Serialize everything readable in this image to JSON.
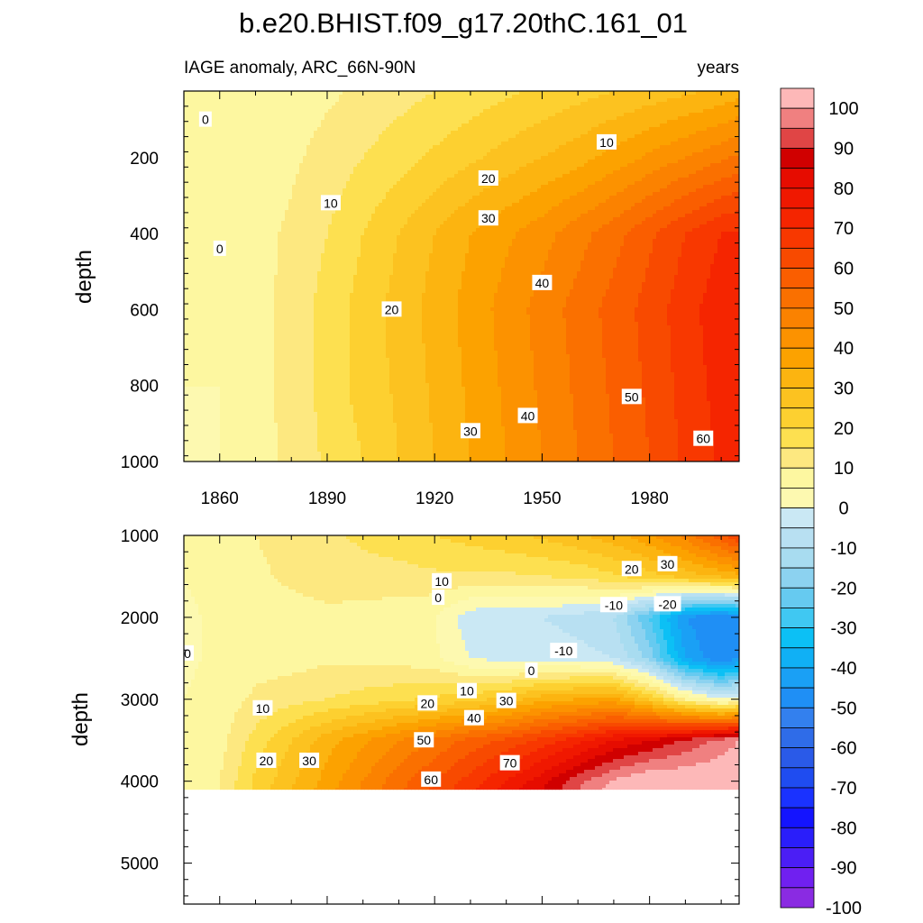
{
  "figure": {
    "title": "b.e20.BHIST.f09_g17.20thC.161_01",
    "subtitle_left": "IAGE anomaly, ARC_66N-90N",
    "subtitle_right": "years"
  },
  "colors": {
    "levels": [
      -100,
      -95,
      -90,
      -85,
      -80,
      -75,
      -70,
      -65,
      -60,
      -55,
      -50,
      -45,
      -40,
      -35,
      -30,
      -25,
      -20,
      -15,
      -10,
      -5,
      0,
      5,
      10,
      15,
      20,
      25,
      30,
      35,
      40,
      45,
      50,
      55,
      60,
      65,
      70,
      75,
      80,
      85,
      90,
      95,
      100
    ],
    "palette": [
      "#8a2be2",
      "#7020f0",
      "#4b1ef5",
      "#2a1efa",
      "#1414ff",
      "#1a32ff",
      "#1f4cf0",
      "#2a5ae8",
      "#2f6ce8",
      "#3380ee",
      "#1f8ff5",
      "#1aa0f5",
      "#10b0f5",
      "#0cc0f5",
      "#40c8f2",
      "#66caf0",
      "#8cd2f0",
      "#a8dcf0",
      "#b8e0f2",
      "#cae8f4",
      "#fdf9b0",
      "#fdf7a0",
      "#fde880",
      "#fde050",
      "#fdd030",
      "#fcc220",
      "#fcb410",
      "#fca200",
      "#fc9200",
      "#fb8200",
      "#fa7000",
      "#fa5e00",
      "#f84a00",
      "#f83800",
      "#f52500",
      "#f01800",
      "#e60c00",
      "#d00000",
      "#e04545",
      "#f08080",
      "#fdb8b8"
    ],
    "background": "#ffffff"
  },
  "chart_data": [
    {
      "type": "heatmap",
      "panel": "upper",
      "variable": "IAGE anomaly",
      "units": "years",
      "x": [
        1850,
        1860,
        1870,
        1880,
        1890,
        1900,
        1910,
        1920,
        1930,
        1940,
        1950,
        1960,
        1970,
        1980,
        1990,
        2000,
        2005
      ],
      "y": [
        25,
        200,
        400,
        600,
        800,
        1000
      ],
      "z": [
        [
          0,
          0,
          1,
          2,
          4,
          6,
          8,
          10,
          12,
          14,
          16,
          18,
          20,
          22,
          24,
          26,
          28
        ],
        [
          0,
          0,
          2,
          4,
          7,
          10,
          13,
          16,
          19,
          22,
          25,
          28,
          32,
          36,
          40,
          44,
          46
        ],
        [
          0,
          0,
          3,
          6,
          10,
          15,
          20,
          25,
          30,
          34,
          38,
          43,
          48,
          54,
          60,
          65,
          66
        ],
        [
          0,
          0,
          3,
          7,
          12,
          17,
          22,
          27,
          32,
          37,
          42,
          47,
          52,
          57,
          63,
          68,
          70
        ],
        [
          0,
          0,
          3,
          7,
          12,
          17,
          21,
          26,
          31,
          36,
          41,
          46,
          51,
          56,
          62,
          67,
          69
        ],
        [
          -1,
          0,
          3,
          6,
          11,
          15,
          20,
          25,
          30,
          35,
          40,
          45,
          50,
          55,
          61,
          66,
          68
        ]
      ],
      "contour_labels": [
        {
          "text": "0",
          "x": 1856,
          "y": 100
        },
        {
          "text": "0",
          "x": 1860,
          "y": 440
        },
        {
          "text": "10",
          "x": 1891,
          "y": 320
        },
        {
          "text": "10",
          "x": 1968,
          "y": 160
        },
        {
          "text": "20",
          "x": 1908,
          "y": 600
        },
        {
          "text": "20",
          "x": 1935,
          "y": 255
        },
        {
          "text": "30",
          "x": 1935,
          "y": 360
        },
        {
          "text": "30",
          "x": 1930,
          "y": 920
        },
        {
          "text": "40",
          "x": 1950,
          "y": 530
        },
        {
          "text": "40",
          "x": 1946,
          "y": 880
        },
        {
          "text": "50",
          "x": 1975,
          "y": 830
        },
        {
          "text": "60",
          "x": 1995,
          "y": 940
        }
      ],
      "xlim": [
        1850,
        2005
      ],
      "ylim": [
        25,
        1000
      ],
      "y_reversed": true,
      "x_ticks": [
        1860,
        1890,
        1920,
        1950,
        1980
      ],
      "y_ticks": [
        200,
        400,
        600,
        800,
        1000
      ],
      "ylabel": "depth"
    },
    {
      "type": "heatmap",
      "panel": "lower",
      "variable": "IAGE anomaly",
      "units": "years",
      "x": [
        1850,
        1860,
        1870,
        1880,
        1890,
        1900,
        1910,
        1920,
        1930,
        1940,
        1950,
        1960,
        1970,
        1980,
        1990,
        2000,
        2005
      ],
      "y": [
        1000,
        1500,
        2000,
        2500,
        3000,
        3500,
        4000,
        4100
      ],
      "z": [
        [
          2,
          3,
          5,
          7,
          9,
          11,
          13,
          15,
          17,
          19,
          21,
          24,
          28,
          34,
          42,
          54,
          60
        ],
        [
          0,
          2,
          4,
          6,
          7,
          8,
          8,
          9,
          9,
          9,
          10,
          11,
          14,
          18,
          22,
          26,
          28
        ],
        [
          -1,
          1,
          2,
          3,
          4,
          3,
          2,
          0,
          -8,
          -10,
          -10,
          -12,
          -15,
          -30,
          -50,
          -55,
          -52
        ],
        [
          -1,
          1,
          3,
          3,
          4,
          4,
          3,
          1,
          -5,
          -7,
          -7,
          -8,
          -10,
          -22,
          -45,
          -55,
          -50
        ],
        [
          0,
          2,
          6,
          8,
          10,
          12,
          14,
          16,
          18,
          22,
          28,
          30,
          32,
          20,
          5,
          -5,
          -2
        ],
        [
          0,
          3,
          12,
          20,
          28,
          34,
          40,
          46,
          52,
          56,
          62,
          68,
          75,
          80,
          86,
          92,
          95
        ],
        [
          0,
          5,
          16,
          24,
          32,
          40,
          48,
          55,
          62,
          70,
          78,
          88,
          96,
          100,
          100,
          100,
          100
        ],
        [
          0,
          5,
          16,
          25,
          33,
          41,
          49,
          56,
          64,
          72,
          80,
          90,
          98,
          100,
          100,
          100,
          100
        ]
      ],
      "contour_labels": [
        {
          "text": "0",
          "x": 1851,
          "y": 2440
        },
        {
          "text": "10",
          "x": 1922,
          "y": 1560
        },
        {
          "text": "0",
          "x": 1921,
          "y": 1760
        },
        {
          "text": "20",
          "x": 1975,
          "y": 1410
        },
        {
          "text": "30",
          "x": 1985,
          "y": 1350
        },
        {
          "text": "-10",
          "x": 1970,
          "y": 1850
        },
        {
          "text": "-20",
          "x": 1985,
          "y": 1840
        },
        {
          "text": "-10",
          "x": 1956,
          "y": 2410
        },
        {
          "text": "0",
          "x": 1947,
          "y": 2650
        },
        {
          "text": "10",
          "x": 1929,
          "y": 2900
        },
        {
          "text": "10",
          "x": 1872,
          "y": 3110
        },
        {
          "text": "20",
          "x": 1918,
          "y": 3050
        },
        {
          "text": "30",
          "x": 1940,
          "y": 3020
        },
        {
          "text": "40",
          "x": 1931,
          "y": 3230
        },
        {
          "text": "50",
          "x": 1917,
          "y": 3500
        },
        {
          "text": "20",
          "x": 1873,
          "y": 3750
        },
        {
          "text": "30",
          "x": 1885,
          "y": 3750
        },
        {
          "text": "70",
          "x": 1941,
          "y": 3780
        },
        {
          "text": "60",
          "x": 1919,
          "y": 3980
        }
      ],
      "xlim": [
        1850,
        2005
      ],
      "ylim": [
        1000,
        5500
      ],
      "y_reversed": true,
      "data_depth_limit": 4100,
      "x_ticks": [
        1860,
        1890,
        1920,
        1950,
        1980
      ],
      "y_ticks": [
        1000,
        2000,
        3000,
        4000,
        5000
      ],
      "ylabel": "depth"
    }
  ],
  "colorbar": {
    "tick_labels": [
      "100",
      "90",
      "80",
      "70",
      "60",
      "50",
      "40",
      "30",
      "20",
      "10",
      "0",
      "-10",
      "-20",
      "-30",
      "-40",
      "-50",
      "-60",
      "-70",
      "-80",
      "-90",
      "-100"
    ]
  }
}
